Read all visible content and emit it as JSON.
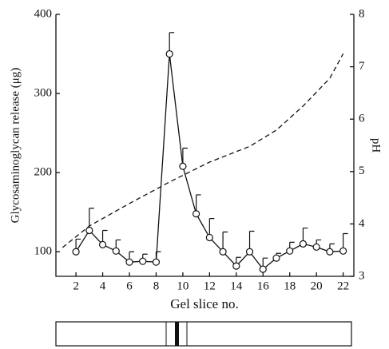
{
  "chart_data": {
    "type": "line",
    "x_label": "Gel slice no.",
    "y_label": "Glycosaminoglycan release (μg)",
    "y2_label": "pH",
    "xlim": [
      0.5,
      22.8
    ],
    "xticks": [
      2,
      4,
      6,
      8,
      10,
      12,
      14,
      16,
      18,
      20,
      22
    ],
    "ylim": [
      69,
      400
    ],
    "yticks": [
      100,
      200,
      300,
      400
    ],
    "y2lim": [
      3,
      8
    ],
    "y2ticks": [
      3,
      4,
      5,
      6,
      7,
      8
    ],
    "series": [
      {
        "x": [
          2,
          3,
          4,
          5,
          6,
          7,
          8,
          9,
          10,
          11,
          12,
          13,
          14,
          15,
          16,
          17,
          18,
          19,
          20,
          21,
          22
        ],
        "values": [
          100,
          127,
          109,
          101,
          87,
          88,
          87,
          350,
          208,
          148,
          118,
          100,
          82,
          100,
          78,
          92,
          101,
          110,
          106,
          100,
          101
        ],
        "errors": [
          16,
          28,
          18,
          14,
          13,
          9,
          13,
          27,
          23,
          24,
          24,
          25,
          11,
          26,
          14,
          6,
          11,
          20,
          9,
          10,
          22
        ],
        "color": "#111111",
        "marker": "circle",
        "axis": "y"
      },
      {
        "x": [
          1,
          3,
          6,
          9,
          12,
          15,
          17,
          19,
          21,
          22
        ],
        "values": [
          3.55,
          3.96,
          4.39,
          4.8,
          5.18,
          5.48,
          5.79,
          6.25,
          6.78,
          7.25
        ],
        "color": "#111111",
        "style": "dashed",
        "axis": "y2"
      }
    ]
  }
}
